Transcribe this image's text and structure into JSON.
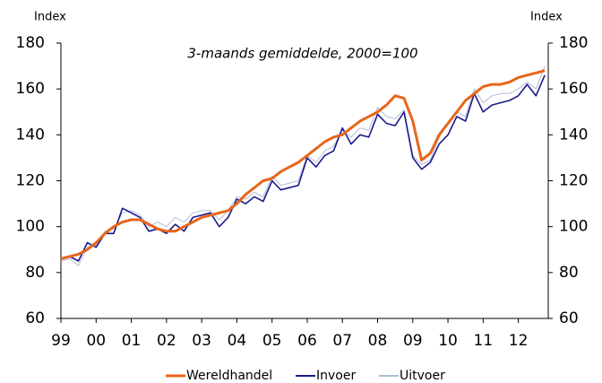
{
  "chart_data": {
    "type": "line",
    "subtitle": "3-maands gemiddelde, 2000=100",
    "ylabel": "Index",
    "y2label": "Index",
    "x": [
      1999,
      1999.25,
      1999.5,
      1999.75,
      2000,
      2000.25,
      2000.5,
      2000.75,
      2001,
      2001.25,
      2001.5,
      2001.75,
      2002,
      2002.25,
      2002.5,
      2002.75,
      2003,
      2003.25,
      2003.5,
      2003.75,
      2004,
      2004.25,
      2004.5,
      2004.75,
      2005,
      2005.25,
      2005.5,
      2005.75,
      2006,
      2006.25,
      2006.5,
      2006.75,
      2007,
      2007.25,
      2007.5,
      2007.75,
      2008,
      2008.25,
      2008.5,
      2008.75,
      2009,
      2009.25,
      2009.5,
      2009.75,
      2010,
      2010.25,
      2010.5,
      2010.75,
      2011,
      2011.25,
      2011.5,
      2011.75,
      2012,
      2012.25,
      2012.5,
      2012.75
    ],
    "series": [
      {
        "name": "Wereldhandel",
        "color": "#e8651a",
        "width": 3,
        "values": [
          86,
          87,
          88,
          90,
          93,
          97,
          100,
          102,
          103,
          103,
          101,
          99,
          98,
          98,
          100,
          102,
          104,
          105,
          106,
          107,
          110,
          114,
          117,
          120,
          121,
          124,
          126,
          128,
          131,
          134,
          137,
          139,
          140,
          143,
          146,
          148,
          150,
          153,
          157,
          156,
          146,
          129,
          132,
          140,
          145,
          150,
          155,
          158,
          161,
          162,
          162,
          163,
          165,
          166,
          167,
          168
        ]
      },
      {
        "name": "Invoer",
        "color": "#1a1a8c",
        "width": 1.6,
        "values": [
          86,
          87,
          85,
          93,
          91,
          97,
          97,
          108,
          106,
          104,
          98,
          99,
          97,
          101,
          98,
          104,
          105,
          106,
          100,
          104,
          112,
          110,
          113,
          111,
          120,
          116,
          117,
          118,
          130,
          126,
          131,
          133,
          143,
          136,
          140,
          139,
          149,
          145,
          144,
          150,
          130,
          125,
          128,
          136,
          140,
          148,
          146,
          158,
          150,
          153,
          154,
          155,
          157,
          162,
          157,
          166
        ]
      },
      {
        "name": "Uitvoer",
        "color": "#b0bcd8",
        "width": 1,
        "values": [
          85,
          86,
          83,
          91,
          92,
          98,
          99,
          106,
          107,
          105,
          100,
          102,
          100,
          104,
          102,
          106,
          107,
          107,
          103,
          107,
          113,
          112,
          115,
          113,
          122,
          118,
          119,
          120,
          131,
          128,
          133,
          135,
          142,
          139,
          143,
          142,
          152,
          148,
          147,
          151,
          131,
          127,
          129,
          139,
          145,
          150,
          148,
          160,
          154,
          157,
          158,
          158,
          160,
          163,
          160,
          170
        ]
      }
    ],
    "xlim": [
      1999,
      2012.85
    ],
    "xticks": [
      {
        "value": 1999,
        "label": "99"
      },
      {
        "value": 2000,
        "label": "00"
      },
      {
        "value": 2001,
        "label": "01"
      },
      {
        "value": 2002,
        "label": "02"
      },
      {
        "value": 2003,
        "label": "03"
      },
      {
        "value": 2004,
        "label": "04"
      },
      {
        "value": 2005,
        "label": "05"
      },
      {
        "value": 2006,
        "label": "06"
      },
      {
        "value": 2007,
        "label": "07"
      },
      {
        "value": 2008,
        "label": "08"
      },
      {
        "value": 2009,
        "label": "09"
      },
      {
        "value": 2010,
        "label": "10"
      },
      {
        "value": 2011,
        "label": "11"
      },
      {
        "value": 2012,
        "label": "12"
      }
    ],
    "ylim": [
      60,
      180
    ],
    "yticks": [
      60,
      80,
      100,
      120,
      140,
      160,
      180
    ],
    "y2lim": [
      60,
      180
    ],
    "y2ticks": [
      60,
      80,
      100,
      120,
      140,
      160,
      180
    ],
    "legend": "bottom"
  }
}
